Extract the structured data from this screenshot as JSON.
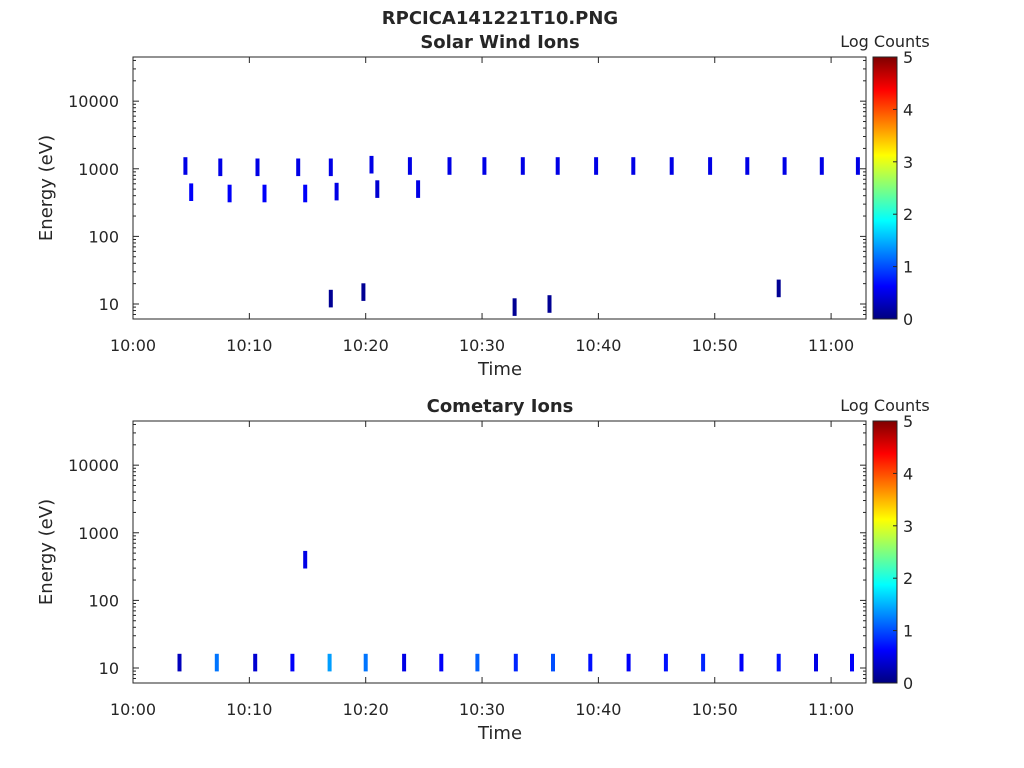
{
  "figure_title": "RPCICA141221T10.PNG",
  "colors": {
    "colormap": [
      "#00007f",
      "#0000ff",
      "#007fff",
      "#00ffff",
      "#7fff7f",
      "#ffff00",
      "#ff7f00",
      "#ff0000",
      "#7f0000"
    ],
    "axis": "#262626",
    "background": "#ffffff"
  },
  "chart_data": [
    {
      "type": "heatmap",
      "title": "Solar Wind Ions",
      "xlabel": "Time",
      "ylabel": "Energy (eV)",
      "yscale": "log",
      "ylim": [
        6,
        45000
      ],
      "xlim": [
        "10:00",
        "11:03"
      ],
      "xticks": [
        "10:00",
        "10:10",
        "10:20",
        "10:30",
        "10:40",
        "10:50",
        "11:00"
      ],
      "yticks": [
        "10",
        "100",
        "1000",
        "10000"
      ],
      "colorbar": {
        "label": "Log Counts",
        "range": [
          0,
          5
        ],
        "ticks": [
          "0",
          "1",
          "2",
          "3",
          "4",
          "5"
        ]
      },
      "grid": false,
      "cells": [
        {
          "t": "10:04.5",
          "e": 1100,
          "v": 0.5
        },
        {
          "t": "10:05.0",
          "e": 450,
          "v": 0.6
        },
        {
          "t": "10:07.5",
          "e": 1050,
          "v": 0.5
        },
        {
          "t": "10:08.3",
          "e": 430,
          "v": 0.6
        },
        {
          "t": "10:10.7",
          "e": 1050,
          "v": 0.5
        },
        {
          "t": "10:11.3",
          "e": 430,
          "v": 0.6
        },
        {
          "t": "10:14.2",
          "e": 1050,
          "v": 0.5
        },
        {
          "t": "10:14.8",
          "e": 430,
          "v": 0.6
        },
        {
          "t": "10:17.0",
          "e": 1050,
          "v": 0.5
        },
        {
          "t": "10:17.5",
          "e": 460,
          "v": 0.5
        },
        {
          "t": "10:20.5",
          "e": 1150,
          "v": 0.5
        },
        {
          "t": "10:21.0",
          "e": 500,
          "v": 0.4
        },
        {
          "t": "10:23.8",
          "e": 1100,
          "v": 0.5
        },
        {
          "t": "10:24.5",
          "e": 500,
          "v": 0.5
        },
        {
          "t": "10:27.2",
          "e": 1100,
          "v": 0.5
        },
        {
          "t": "10:30.2",
          "e": 1100,
          "v": 0.5
        },
        {
          "t": "10:33.5",
          "e": 1100,
          "v": 0.5
        },
        {
          "t": "10:36.5",
          "e": 1100,
          "v": 0.5
        },
        {
          "t": "10:39.8",
          "e": 1100,
          "v": 0.5
        },
        {
          "t": "10:43.0",
          "e": 1100,
          "v": 0.5
        },
        {
          "t": "10:46.3",
          "e": 1100,
          "v": 0.5
        },
        {
          "t": "10:49.6",
          "e": 1100,
          "v": 0.5
        },
        {
          "t": "10:52.8",
          "e": 1100,
          "v": 0.5
        },
        {
          "t": "10:56.0",
          "e": 1100,
          "v": 0.5
        },
        {
          "t": "10:59.2",
          "e": 1100,
          "v": 0.5
        },
        {
          "t": "11:02.3",
          "e": 1100,
          "v": 0.5
        },
        {
          "t": "10:17.0",
          "e": 12,
          "v": 0.1
        },
        {
          "t": "10:19.8",
          "e": 15,
          "v": 0.1
        },
        {
          "t": "10:32.8",
          "e": 9,
          "v": 0.1
        },
        {
          "t": "10:35.8",
          "e": 10,
          "v": 0.1
        },
        {
          "t": "10:55.5",
          "e": 17,
          "v": 0.1
        }
      ]
    },
    {
      "type": "heatmap",
      "title": "Cometary Ions",
      "xlabel": "Time",
      "ylabel": "Energy (eV)",
      "yscale": "log",
      "ylim": [
        6,
        45000
      ],
      "xlim": [
        "10:00",
        "11:03"
      ],
      "xticks": [
        "10:00",
        "10:10",
        "10:20",
        "10:30",
        "10:40",
        "10:50",
        "11:00"
      ],
      "yticks": [
        "10",
        "100",
        "1000",
        "10000"
      ],
      "colorbar": {
        "label": "Log Counts",
        "range": [
          0,
          5
        ],
        "ticks": [
          "0",
          "1",
          "2",
          "3",
          "4",
          "5"
        ]
      },
      "grid": false,
      "cells": [
        {
          "t": "10:04.0",
          "e": 12,
          "v": 0.3
        },
        {
          "t": "10:07.2",
          "e": 12,
          "v": 1.2
        },
        {
          "t": "10:10.5",
          "e": 12,
          "v": 0.4
        },
        {
          "t": "10:13.7",
          "e": 12,
          "v": 0.6
        },
        {
          "t": "10:14.8",
          "e": 400,
          "v": 0.5
        },
        {
          "t": "10:16.9",
          "e": 12,
          "v": 1.4
        },
        {
          "t": "10:20.0",
          "e": 12,
          "v": 1.2
        },
        {
          "t": "10:23.3",
          "e": 12,
          "v": 0.5
        },
        {
          "t": "10:26.5",
          "e": 12,
          "v": 0.6
        },
        {
          "t": "10:29.6",
          "e": 12,
          "v": 1.1
        },
        {
          "t": "10:32.9",
          "e": 12,
          "v": 0.8
        },
        {
          "t": "10:36.1",
          "e": 12,
          "v": 1.0
        },
        {
          "t": "10:39.3",
          "e": 12,
          "v": 0.7
        },
        {
          "t": "10:42.6",
          "e": 12,
          "v": 0.6
        },
        {
          "t": "10:45.8",
          "e": 12,
          "v": 0.7
        },
        {
          "t": "10:49.0",
          "e": 12,
          "v": 0.8
        },
        {
          "t": "10:52.3",
          "e": 12,
          "v": 0.6
        },
        {
          "t": "10:55.5",
          "e": 12,
          "v": 0.7
        },
        {
          "t": "10:58.7",
          "e": 12,
          "v": 0.5
        },
        {
          "t": "11:01.8",
          "e": 12,
          "v": 0.6
        }
      ]
    }
  ]
}
